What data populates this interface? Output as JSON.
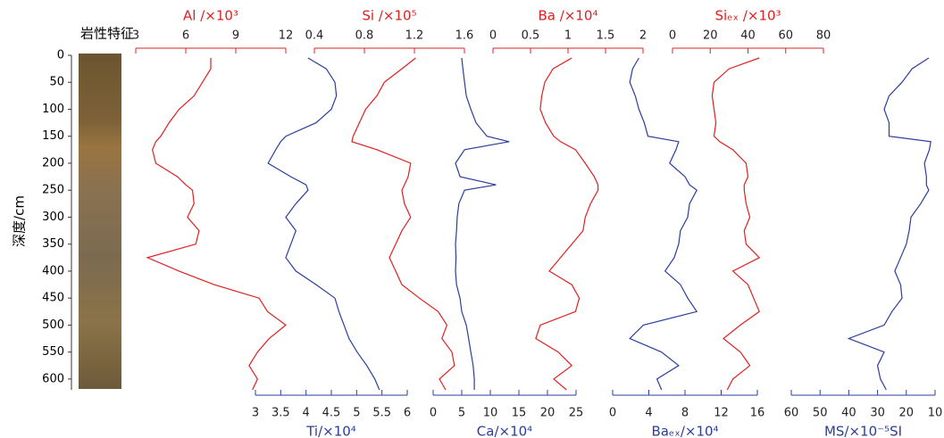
{
  "chart_data": {
    "type": "depth-profile",
    "lithology_label": "岩性特征",
    "depth_label": "深度/cm",
    "depth_lim": [
      0,
      620
    ],
    "depth_ticks": [
      0,
      50,
      100,
      150,
      200,
      250,
      300,
      350,
      400,
      450,
      500,
      550,
      600
    ],
    "depth": [
      5,
      25,
      50,
      75,
      100,
      125,
      150,
      160,
      175,
      200,
      225,
      240,
      250,
      275,
      300,
      325,
      350,
      375,
      400,
      425,
      450,
      475,
      500,
      525,
      550,
      575,
      600,
      620
    ],
    "series": [
      {
        "name": "Al /×10³",
        "color": "#e02020",
        "axis": "top",
        "xlim": [
          3,
          12
        ],
        "xticks": [
          3,
          6,
          9,
          12
        ],
        "values": [
          7.5,
          7.5,
          7,
          6.5,
          5.6,
          5,
          4.5,
          4.2,
          4,
          4.2,
          5.5,
          6,
          6.4,
          6.5,
          6.1,
          6.8,
          6.6,
          3.7,
          5.6,
          7.7,
          10.4,
          10.9,
          12,
          11,
          10.3,
          9.8,
          10.3,
          10
        ]
      },
      {
        "name": "Si /×10⁵",
        "color": "#e02020",
        "axis": "top",
        "xlim": [
          0.4,
          1.6
        ],
        "xticks": [
          0.4,
          0.8,
          1.2,
          1.6
        ],
        "values": [
          1.21,
          1.1,
          0.96,
          0.9,
          0.81,
          0.76,
          0.71,
          0.7,
          0.9,
          1.17,
          1.15,
          1.12,
          1.1,
          1.12,
          1.17,
          1.1,
          1.05,
          1.0,
          1.05,
          1.1,
          1.24,
          1.39,
          1.46,
          1.42,
          1.5,
          1.52,
          1.4,
          1.45
        ]
      },
      {
        "name": "Ba /×10⁴",
        "color": "#e02020",
        "axis": "top",
        "xlim": [
          0,
          2
        ],
        "xticks": [
          0,
          0.5,
          1,
          1.5,
          2
        ],
        "values": [
          1.05,
          0.8,
          0.69,
          0.65,
          0.63,
          0.7,
          0.81,
          0.9,
          1.1,
          1.23,
          1.35,
          1.4,
          1.4,
          1.3,
          1.23,
          1.2,
          1.05,
          0.9,
          0.75,
          1.05,
          1.15,
          1.1,
          0.63,
          0.57,
          0.87,
          1.05,
          0.81,
          0.98
        ]
      },
      {
        "name": "Siₑₓ /×10³",
        "color": "#e02020",
        "axis": "top",
        "xlim": [
          0,
          80
        ],
        "xticks": [
          0,
          20,
          40,
          60,
          80
        ],
        "values": [
          46,
          30,
          22,
          21,
          22,
          23,
          22,
          25,
          32,
          39,
          40,
          38,
          38,
          39,
          41,
          38,
          39,
          46,
          32,
          40,
          43,
          46,
          36,
          27,
          36,
          41,
          32,
          29
        ]
      },
      {
        "name": "Ti/×10⁴",
        "color": "#2b3e9a",
        "axis": "bottom",
        "xlim": [
          3,
          6
        ],
        "xticks": [
          3,
          3.5,
          4,
          4.5,
          5,
          5.5,
          6
        ],
        "values": [
          4.04,
          4.4,
          4.57,
          4.6,
          4.5,
          4.2,
          3.6,
          3.5,
          3.4,
          3.25,
          3.7,
          4.0,
          4.04,
          3.8,
          3.6,
          3.8,
          3.7,
          3.6,
          3.8,
          4.2,
          4.57,
          4.65,
          4.75,
          4.85,
          5.01,
          5.2,
          5.36,
          5.45
        ]
      },
      {
        "name": "Ca/×10⁴",
        "color": "#2b3e9a",
        "axis": "bottom",
        "xlim": [
          0,
          25
        ],
        "xticks": [
          0,
          5,
          10,
          15,
          20,
          25
        ],
        "values": [
          5,
          5.2,
          5.5,
          5.8,
          6.6,
          7.5,
          9.4,
          13.3,
          5.5,
          3.9,
          4.7,
          11,
          5.5,
          4.5,
          4.2,
          4.1,
          3.9,
          4,
          3.9,
          4.1,
          4.7,
          5,
          5.8,
          6.2,
          6.6,
          7,
          7.2,
          7.2
        ]
      },
      {
        "name": "Baₑₓ/×10⁴",
        "color": "#2b3e9a",
        "axis": "bottom",
        "xlim": [
          0,
          16
        ],
        "xticks": [
          0,
          4,
          8,
          12,
          16
        ],
        "values": [
          2.9,
          2.2,
          1.9,
          2.5,
          2.9,
          3.5,
          3.9,
          7.3,
          7,
          6.3,
          8,
          8.5,
          9.3,
          8.5,
          8.3,
          7.5,
          7.3,
          6.8,
          5.8,
          7.5,
          8.3,
          9.3,
          3.4,
          1.9,
          5.4,
          7.3,
          4.9,
          5.4
        ]
      },
      {
        "name": "MS/×10⁻⁵SI",
        "color": "#2b3e9a",
        "axis": "bottom",
        "xlim": [
          60,
          10
        ],
        "xticks": [
          60,
          50,
          40,
          30,
          20,
          10
        ],
        "values": [
          12.2,
          18,
          21.5,
          26,
          27.7,
          26,
          26,
          11.5,
          12,
          13.7,
          13,
          13,
          12.2,
          15,
          18.4,
          19,
          20,
          22,
          24,
          22,
          21.5,
          25,
          27.7,
          40,
          27.7,
          30,
          29,
          27
        ]
      }
    ]
  }
}
